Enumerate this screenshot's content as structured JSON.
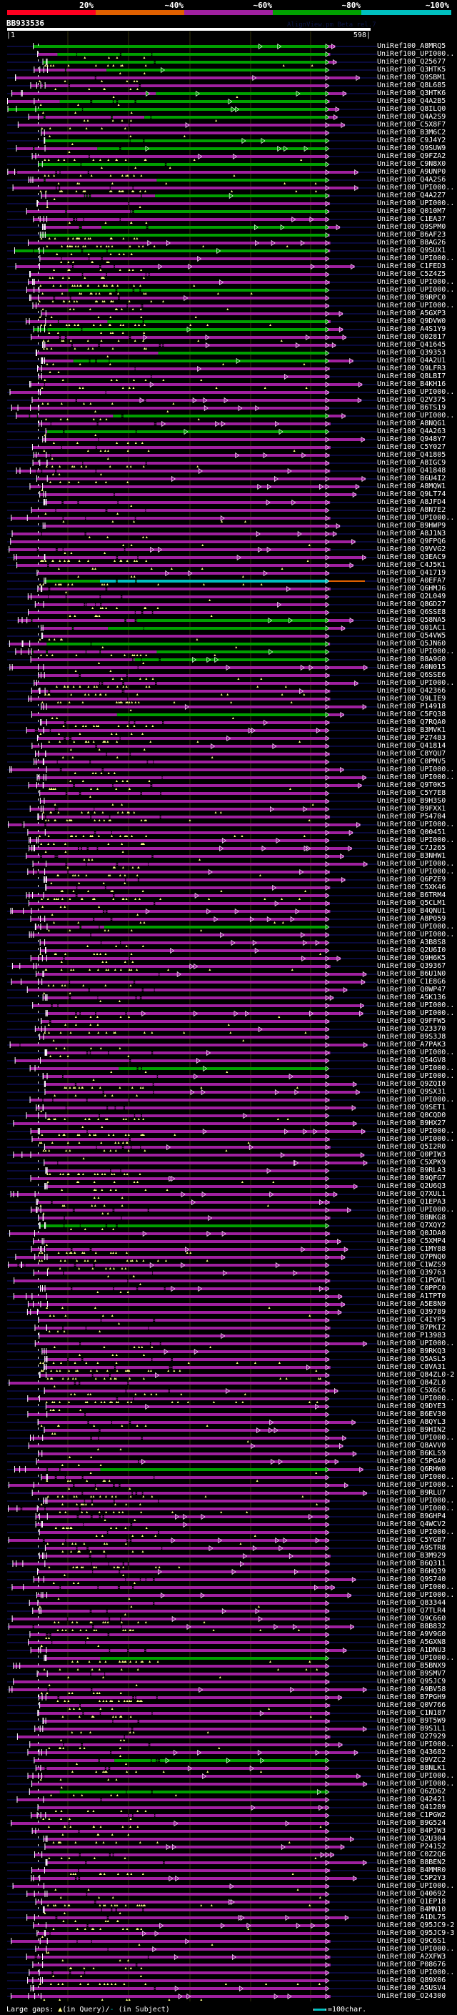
{
  "header": {
    "identity_scale": [
      {
        "label": "20%",
        "color": "#ff0020"
      },
      {
        "label": "~40%",
        "color": "#e06000"
      },
      {
        "label": "~60%",
        "color": "#a020a0"
      },
      {
        "label": "~80%",
        "color": "#00a000"
      },
      {
        "label": "~100%",
        "color": "#00c0c0"
      }
    ],
    "query_name": "BB933536",
    "version": "AlignView.pm Beta rel.7",
    "ruler_start": "|1",
    "ruler_end": "598|"
  },
  "colors": {
    "p": "#a020a0",
    "g": "#00a000",
    "c": "#00c0c0",
    "o": "#e06000",
    "gap": "#ffff88",
    "baseline": "#0a0a3c",
    "grid": "#33330c"
  },
  "rows": [
    {
      "l": "UniRef100_A8MRQ5",
      "c": "g"
    },
    {
      "l": "UniRef100_UPI000..",
      "c": "m"
    },
    {
      "l": "UniRef100_Q25677",
      "c": "g"
    },
    {
      "l": "UniRef100_Q3HTK5",
      "c": "m"
    },
    {
      "l": "UniRef100_Q9SBM1",
      "c": "p"
    },
    {
      "l": "UniRef100_Q8L685",
      "c": "p"
    },
    {
      "l": "UniRef100_Q3HTK6",
      "c": "m"
    },
    {
      "l": "UniRef100_Q4A2B5",
      "c": "m"
    },
    {
      "l": "UniRef100_Q8ILQ0",
      "c": "g"
    },
    {
      "l": "UniRef100_Q4A2S9",
      "c": "m"
    },
    {
      "l": "UniRef100_C5X8F7",
      "c": "p"
    },
    {
      "l": "UniRef100_B3M6C2",
      "c": "p"
    },
    {
      "l": "UniRef100_C9J4Y2",
      "c": "g"
    },
    {
      "l": "UniRef100_Q9SUW9",
      "c": "m"
    },
    {
      "l": "UniRef100_Q9FZA2",
      "c": "p"
    },
    {
      "l": "UniRef100_C9N8X0",
      "c": "g"
    },
    {
      "l": "UniRef100_A9UNP0",
      "c": "p"
    },
    {
      "l": "UniRef100_Q4A2S6",
      "c": "m"
    },
    {
      "l": "UniRef100_UPI000..",
      "c": "p"
    },
    {
      "l": "UniRef100_Q4A2Z7",
      "c": "m"
    },
    {
      "l": "UniRef100_UPI000..",
      "c": "p"
    },
    {
      "l": "UniRef100_Q010M7",
      "c": "m"
    },
    {
      "l": "UniRef100_C1EA37",
      "c": "p"
    },
    {
      "l": "UniRef100_Q9SPM0",
      "c": "m"
    },
    {
      "l": "UniRef100_B6AF23",
      "c": "g"
    },
    {
      "l": "UniRef100_B8AG26",
      "c": "p"
    },
    {
      "l": "UniRef100_Q9SUX1",
      "c": "g"
    },
    {
      "l": "UniRef100_UPI000..",
      "c": "p"
    },
    {
      "l": "UniRef100_C1FED3",
      "c": "p"
    },
    {
      "l": "UniRef100_C5Z4Z5",
      "c": "p"
    },
    {
      "l": "UniRef100_UPI000..",
      "c": "p"
    },
    {
      "l": "UniRef100_UPI000..",
      "c": "m"
    },
    {
      "l": "UniRef100_B9RPC0",
      "c": "p"
    },
    {
      "l": "UniRef100_UPI000..",
      "c": "p"
    },
    {
      "l": "UniRef100_A5GXP3",
      "c": "p"
    },
    {
      "l": "UniRef100_Q9DVW0",
      "c": "m"
    },
    {
      "l": "UniRef100_A4S1Y9",
      "c": "g"
    },
    {
      "l": "UniRef100_Q02817",
      "c": "p"
    },
    {
      "l": "UniRef100_Q41645",
      "c": "p"
    },
    {
      "l": "UniRef100_Q39353",
      "c": "m"
    },
    {
      "l": "UniRef100_Q4A2U1",
      "c": "m"
    },
    {
      "l": "UniRef100_Q9LFR3",
      "c": "p"
    },
    {
      "l": "UniRef100_Q8LBI7",
      "c": "p"
    },
    {
      "l": "UniRef100_B4KH16",
      "c": "p"
    },
    {
      "l": "UniRef100_UPI000..",
      "c": "p"
    },
    {
      "l": "UniRef100_Q2V375",
      "c": "p"
    },
    {
      "l": "UniRef100_B6TS19",
      "c": "p"
    },
    {
      "l": "UniRef100_UPI000..",
      "c": "m"
    },
    {
      "l": "UniRef100_A8NQG1",
      "c": "p"
    },
    {
      "l": "UniRef100_Q4A263",
      "c": "m"
    },
    {
      "l": "UniRef100_Q948Y7",
      "c": "p"
    },
    {
      "l": "UniRef100_C5Y027",
      "c": "p"
    },
    {
      "l": "UniRef100_Q41805",
      "c": "p"
    },
    {
      "l": "UniRef100_A8IGC9",
      "c": "p"
    },
    {
      "l": "UniRef100_Q41848",
      "c": "p"
    },
    {
      "l": "UniRef100_B6U4I2",
      "c": "p"
    },
    {
      "l": "UniRef100_A8MQW1",
      "c": "p"
    },
    {
      "l": "UniRef100_Q9LT74",
      "c": "p"
    },
    {
      "l": "UniRef100_A8JFD4",
      "c": "p"
    },
    {
      "l": "UniRef100_A8N7E2",
      "c": "p"
    },
    {
      "l": "UniRef100_UPI000..",
      "c": "p"
    },
    {
      "l": "UniRef100_B9HWP9",
      "c": "p"
    },
    {
      "l": "UniRef100_A8J1N3",
      "c": "p"
    },
    {
      "l": "UniRef100_Q9FPQ6",
      "c": "p"
    },
    {
      "l": "UniRef100_Q9VVG2",
      "c": "p"
    },
    {
      "l": "UniRef100_Q3EAC9",
      "c": "p"
    },
    {
      "l": "UniRef100_C4J5K1",
      "c": "p"
    },
    {
      "l": "UniRef100_Q41719",
      "c": "p"
    },
    {
      "l": "UniRef100_A0EFA7",
      "c": "c"
    },
    {
      "l": "UniRef100_Q6HMJ6",
      "c": "p"
    },
    {
      "l": "UniRef100_Q2L049",
      "c": "p"
    },
    {
      "l": "UniRef100_Q8GD27",
      "c": "p"
    },
    {
      "l": "UniRef100_Q6SSE8",
      "c": "p"
    },
    {
      "l": "UniRef100_Q58NA5",
      "c": "m"
    },
    {
      "l": "UniRef100_Q01AC1",
      "c": "m"
    },
    {
      "l": "UniRef100_Q54VW5",
      "c": "p"
    },
    {
      "l": "UniRef100_Q5JN60",
      "c": "m"
    },
    {
      "l": "UniRef100_UPI000..",
      "c": "m"
    },
    {
      "l": "UniRef100_B8A9G0",
      "c": "m"
    },
    {
      "l": "UniRef100_A0N015",
      "c": "p"
    },
    {
      "l": "UniRef100_Q6SSE6",
      "c": "p"
    },
    {
      "l": "UniRef100_UPI000..",
      "c": "p"
    },
    {
      "l": "UniRef100_Q42366",
      "c": "p"
    },
    {
      "l": "UniRef100_Q9LIE9",
      "c": "p"
    },
    {
      "l": "UniRef100_P14918",
      "c": "p"
    },
    {
      "l": "UniRef100_C5FQ38",
      "c": "m"
    },
    {
      "l": "UniRef100_Q7RQA0",
      "c": "p"
    },
    {
      "l": "UniRef100_B3MVK1",
      "c": "p"
    },
    {
      "l": "UniRef100_P27483",
      "c": "p"
    },
    {
      "l": "UniRef100_Q41814",
      "c": "p"
    },
    {
      "l": "UniRef100_C8YQU7",
      "c": "p"
    },
    {
      "l": "UniRef100_C0PMV5",
      "c": "p"
    },
    {
      "l": "UniRef100_UPI000..",
      "c": "p"
    },
    {
      "l": "UniRef100_UPI000..",
      "c": "p"
    },
    {
      "l": "UniRef100_Q9T0K5",
      "c": "p"
    },
    {
      "l": "UniRef100_C5Y7E8",
      "c": "p"
    },
    {
      "l": "UniRef100_B9H3S0",
      "c": "p"
    },
    {
      "l": "UniRef100_B9FXX1",
      "c": "p"
    },
    {
      "l": "UniRef100_P54704",
      "c": "p"
    },
    {
      "l": "UniRef100_UPI000..",
      "c": "p"
    },
    {
      "l": "UniRef100_Q00451",
      "c": "p"
    },
    {
      "l": "UniRef100_UPI000..",
      "c": "p"
    },
    {
      "l": "UniRef100_C7J265",
      "c": "p"
    },
    {
      "l": "UniRef100_B3NHW1",
      "c": "p"
    },
    {
      "l": "UniRef100_UPI000..",
      "c": "p"
    },
    {
      "l": "UniRef100_UPI000..",
      "c": "p"
    },
    {
      "l": "UniRef100_Q6PZE9",
      "c": "p"
    },
    {
      "l": "UniRef100_C5XK46",
      "c": "p"
    },
    {
      "l": "UniRef100_B6TRM4",
      "c": "p"
    },
    {
      "l": "UniRef100_Q5CLM1",
      "c": "p"
    },
    {
      "l": "UniRef100_B4QNU1",
      "c": "p"
    },
    {
      "l": "UniRef100_A8P059",
      "c": "p"
    },
    {
      "l": "UniRef100_UPI000..",
      "c": "m"
    },
    {
      "l": "UniRef100_UPI000..",
      "c": "p"
    },
    {
      "l": "UniRef100_A3B8S8",
      "c": "p"
    },
    {
      "l": "UniRef100_Q2U6I0",
      "c": "p"
    },
    {
      "l": "UniRef100_Q9H6K5",
      "c": "p"
    },
    {
      "l": "UniRef100_Q39367",
      "c": "p"
    },
    {
      "l": "UniRef100_B6U1N0",
      "c": "p"
    },
    {
      "l": "UniRef100_C1E8G6",
      "c": "p"
    },
    {
      "l": "UniRef100_Q0WP47",
      "c": "p"
    },
    {
      "l": "UniRef100_A5K136",
      "c": "p"
    },
    {
      "l": "UniRef100_UPI000..",
      "c": "p"
    },
    {
      "l": "UniRef100_UPI000..",
      "c": "p"
    },
    {
      "l": "UniRef100_Q9FFW5",
      "c": "p"
    },
    {
      "l": "UniRef100_O23370",
      "c": "p"
    },
    {
      "l": "UniRef100_B9S3J8",
      "c": "p"
    },
    {
      "l": "UniRef100_A7PAK3",
      "c": "p"
    },
    {
      "l": "UniRef100_UPI000..",
      "c": "p"
    },
    {
      "l": "UniRef100_Q54GV8",
      "c": "p"
    },
    {
      "l": "UniRef100_UPI000..",
      "c": "m"
    },
    {
      "l": "UniRef100_UPI000..",
      "c": "p"
    },
    {
      "l": "UniRef100_Q9ZQI0",
      "c": "p"
    },
    {
      "l": "UniRef100_Q9SX31",
      "c": "p"
    },
    {
      "l": "UniRef100_UPI000..",
      "c": "p"
    },
    {
      "l": "UniRef100_Q9SET1",
      "c": "p"
    },
    {
      "l": "UniRef100_Q0CQD0",
      "c": "p"
    },
    {
      "l": "UniRef100_B9HX27",
      "c": "p"
    },
    {
      "l": "UniRef100_UPI000..",
      "c": "p"
    },
    {
      "l": "UniRef100_UPI000..",
      "c": "p"
    },
    {
      "l": "UniRef100_Q5I2R0",
      "c": "p"
    },
    {
      "l": "UniRef100_Q0PIW3",
      "c": "p"
    },
    {
      "l": "UniRef100_C5XPK9",
      "c": "p"
    },
    {
      "l": "UniRef100_B9RLA3",
      "c": "p"
    },
    {
      "l": "UniRef100_B9QFG7",
      "c": "p"
    },
    {
      "l": "UniRef100_Q2U6Q3",
      "c": "p"
    },
    {
      "l": "UniRef100_Q7XUL1",
      "c": "p"
    },
    {
      "l": "UniRef100_Q1EPA3",
      "c": "p"
    },
    {
      "l": "UniRef100_UPI000..",
      "c": "p"
    },
    {
      "l": "UniRef100_B8NKG8",
      "c": "p"
    },
    {
      "l": "UniRef100_Q7XQY2",
      "c": "g"
    },
    {
      "l": "UniRef100_Q0JDA0",
      "c": "p"
    },
    {
      "l": "UniRef100_C5XMP4",
      "c": "p"
    },
    {
      "l": "UniRef100_C1MY88",
      "c": "p"
    },
    {
      "l": "UniRef100_Q7PNQ0",
      "c": "p"
    },
    {
      "l": "UniRef100_C1WZS9",
      "c": "p"
    },
    {
      "l": "UniRef100_Q39763",
      "c": "p"
    },
    {
      "l": "UniRef100_C1PGW1",
      "c": "p"
    },
    {
      "l": "UniRef100_C0PPC0",
      "c": "p"
    },
    {
      "l": "UniRef100_A1TPT0",
      "c": "p"
    },
    {
      "l": "UniRef100_A5E8N9",
      "c": "p"
    },
    {
      "l": "UniRef100_Q39789",
      "c": "p"
    },
    {
      "l": "UniRef100_C4IYP5",
      "c": "p"
    },
    {
      "l": "UniRef100_B7PKI2",
      "c": "p"
    },
    {
      "l": "UniRef100_P13983",
      "c": "p"
    },
    {
      "l": "UniRef100_UPI000..",
      "c": "p"
    },
    {
      "l": "UniRef100_B9RKQ3",
      "c": "p"
    },
    {
      "l": "UniRef100_Q5ASL5",
      "c": "p"
    },
    {
      "l": "UniRef100_C8VA31",
      "c": "p"
    },
    {
      "l": "UniRef100_Q84ZL0-2",
      "c": "p"
    },
    {
      "l": "UniRef100_Q84ZL0",
      "c": "p"
    },
    {
      "l": "UniRef100_C5X6C6",
      "c": "p"
    },
    {
      "l": "UniRef100_UPI000..",
      "c": "p"
    },
    {
      "l": "UniRef100_Q9DYE3",
      "c": "p"
    },
    {
      "l": "UniRef100_B6EV30",
      "c": "p"
    },
    {
      "l": "UniRef100_A8QYL3",
      "c": "p"
    },
    {
      "l": "UniRef100_B9HIN2",
      "c": "p"
    },
    {
      "l": "UniRef100_UPI000..",
      "c": "p"
    },
    {
      "l": "UniRef100_Q8AVV0",
      "c": "p"
    },
    {
      "l": "UniRef100_B6KLS9",
      "c": "p"
    },
    {
      "l": "UniRef100_C5PGA0",
      "c": "p"
    },
    {
      "l": "UniRef100_Q6RHW0",
      "c": "m"
    },
    {
      "l": "UniRef100_UPI000..",
      "c": "p"
    },
    {
      "l": "UniRef100_UPI000..",
      "c": "p"
    },
    {
      "l": "UniRef100_B9RLU7",
      "c": "p"
    },
    {
      "l": "UniRef100_UPI000..",
      "c": "p"
    },
    {
      "l": "UniRef100_UPI000..",
      "c": "p"
    },
    {
      "l": "UniRef100_B9GHP4",
      "c": "p"
    },
    {
      "l": "UniRef100_Q4WCV2",
      "c": "p"
    },
    {
      "l": "UniRef100_UPI000..",
      "c": "p"
    },
    {
      "l": "UniRef100_C5YGB7",
      "c": "p"
    },
    {
      "l": "UniRef100_A9STR8",
      "c": "p"
    },
    {
      "l": "UniRef100_B3M929",
      "c": "p"
    },
    {
      "l": "UniRef100_B6Q311",
      "c": "p"
    },
    {
      "l": "UniRef100_B6HQ39",
      "c": "p"
    },
    {
      "l": "UniRef100_Q9S740",
      "c": "p"
    },
    {
      "l": "UniRef100_UPI000..",
      "c": "p"
    },
    {
      "l": "UniRef100_UPI000..",
      "c": "p"
    },
    {
      "l": "UniRef100_Q83344",
      "c": "p"
    },
    {
      "l": "UniRef100_Q7TLR4",
      "c": "p"
    },
    {
      "l": "UniRef100_Q9C660",
      "c": "p"
    },
    {
      "l": "UniRef100_B8B832",
      "c": "p"
    },
    {
      "l": "UniRef100_A9V9G0",
      "c": "p"
    },
    {
      "l": "UniRef100_A5GXN8",
      "c": "p"
    },
    {
      "l": "UniRef100_A1DNU3",
      "c": "p"
    },
    {
      "l": "UniRef100_UPI000..",
      "c": "m"
    },
    {
      "l": "UniRef100_B5BNX9",
      "c": "p"
    },
    {
      "l": "UniRef100_B9SMV7",
      "c": "p"
    },
    {
      "l": "UniRef100_Q95JC9",
      "c": "p"
    },
    {
      "l": "UniRef100_A9BV58",
      "c": "p"
    },
    {
      "l": "UniRef100_B7PGH9",
      "c": "p"
    },
    {
      "l": "UniRef100_Q0V766",
      "c": "p"
    },
    {
      "l": "UniRef100_C1N187",
      "c": "p"
    },
    {
      "l": "UniRef100_B9T5W9",
      "c": "p"
    },
    {
      "l": "UniRef100_B9S1L1",
      "c": "p"
    },
    {
      "l": "UniRef100_Q27929",
      "c": "p"
    },
    {
      "l": "UniRef100_UPI000..",
      "c": "p"
    },
    {
      "l": "UniRef100_Q43682",
      "c": "p"
    },
    {
      "l": "UniRef100_Q9VZC2",
      "c": "m"
    },
    {
      "l": "UniRef100_B8NLK1",
      "c": "p"
    },
    {
      "l": "UniRef100_UPI000..",
      "c": "p"
    },
    {
      "l": "UniRef100_UPI000..",
      "c": "p"
    },
    {
      "l": "UniRef100_Q6ZD62",
      "c": "m"
    },
    {
      "l": "UniRef100_Q42421",
      "c": "p"
    },
    {
      "l": "UniRef100_Q41289",
      "c": "p"
    },
    {
      "l": "UniRef100_C1PGW2",
      "c": "p"
    },
    {
      "l": "UniRef100_B9G524",
      "c": "p"
    },
    {
      "l": "UniRef100_B4PJW3",
      "c": "p"
    },
    {
      "l": "UniRef100_Q2U304",
      "c": "p"
    },
    {
      "l": "UniRef100_P24152",
      "c": "p"
    },
    {
      "l": "UniRef100_C0Z2Q6",
      "c": "p"
    },
    {
      "l": "UniRef100_B8BEN2",
      "c": "p"
    },
    {
      "l": "UniRef100_B4MMR0",
      "c": "p"
    },
    {
      "l": "UniRef100_C5P2Y3",
      "c": "p"
    },
    {
      "l": "UniRef100_UPI000..",
      "c": "p"
    },
    {
      "l": "UniRef100_Q40692",
      "c": "p"
    },
    {
      "l": "UniRef100_Q1EP18",
      "c": "p"
    },
    {
      "l": "UniRef100_B4MN10",
      "c": "p"
    },
    {
      "l": "UniRef100_A1DL75",
      "c": "p"
    },
    {
      "l": "UniRef100_Q95JC9-2",
      "c": "p"
    },
    {
      "l": "UniRef100_Q95JC9-3",
      "c": "p"
    },
    {
      "l": "UniRef100_Q9C6S1",
      "c": "p"
    },
    {
      "l": "UniRef100_UPI000..",
      "c": "p"
    },
    {
      "l": "UniRef100_A2XFW3",
      "c": "p"
    },
    {
      "l": "UniRef100_P08676",
      "c": "p"
    },
    {
      "l": "UniRef100_UPI000..",
      "c": "p"
    },
    {
      "l": "UniRef100_Q89X06",
      "c": "p"
    },
    {
      "l": "UniRef100_A5USV4",
      "c": "p"
    },
    {
      "l": "UniRef100_O24300",
      "c": "p"
    }
  ],
  "footer": {
    "gaps_label": "Large gaps: ",
    "query_gap_symbol": "▲",
    "query_gap_text": "(in Query)/",
    "subject_gap_symbol": "-",
    "subject_gap_text": " (in Subject)",
    "scale_text": "=100char."
  }
}
